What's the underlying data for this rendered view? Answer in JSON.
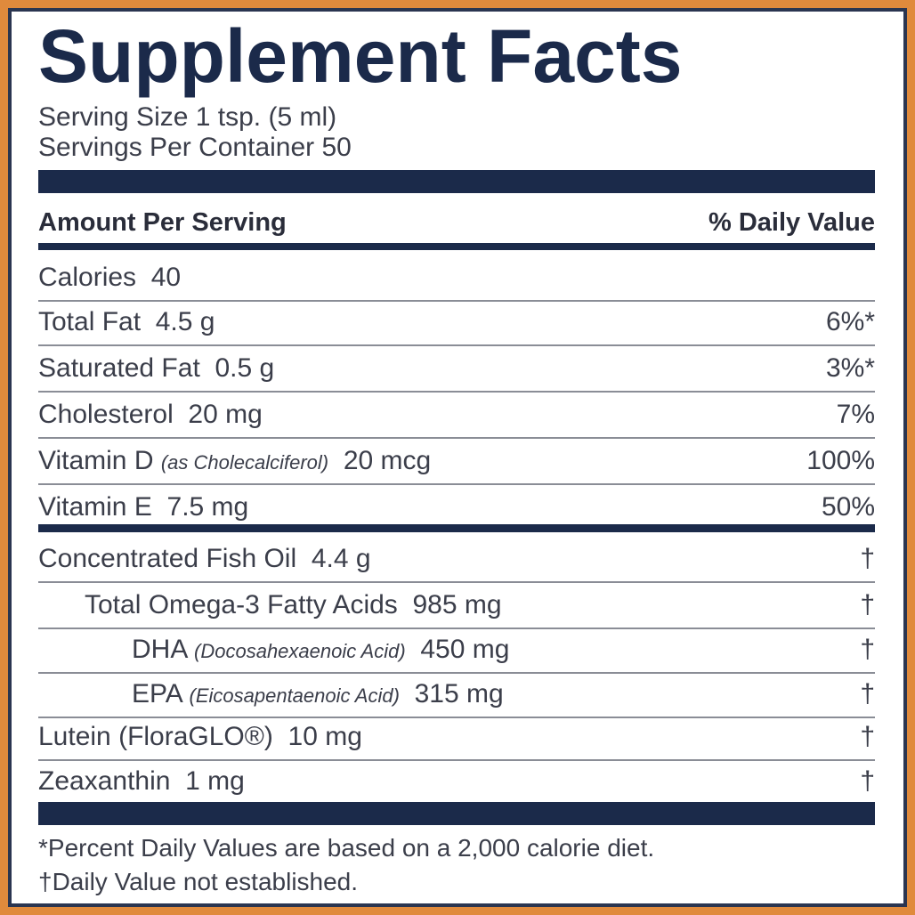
{
  "title": "Supplement Facts",
  "serving_size": "Serving Size 1 tsp. (5 ml)",
  "servings_per_container": "Servings Per Container 50",
  "header": {
    "left": "Amount Per Serving",
    "right": "% Daily Value"
  },
  "rows": [
    {
      "name": "Calories",
      "amount": "40",
      "dv": ""
    },
    {
      "name": "Total Fat",
      "amount": "4.5 g",
      "dv": "6%*"
    },
    {
      "name": "Saturated Fat",
      "amount": "0.5 g",
      "dv": "3%*"
    },
    {
      "name": "Cholesterol",
      "amount": "20 mg",
      "dv": "7%"
    },
    {
      "name": "Vitamin D",
      "note": "(as Cholecalciferol)",
      "amount": "20 mcg",
      "dv": "100%"
    },
    {
      "name": "Vitamin E",
      "amount": "7.5 mg",
      "dv": "50%"
    },
    {
      "name": "Concentrated Fish Oil",
      "amount": "4.4 g",
      "dv": "†"
    },
    {
      "name": "Total Omega-3 Fatty Acids",
      "amount": "985 mg",
      "dv": "†"
    },
    {
      "name": "DHA",
      "note": "(Docosahexaenoic Acid)",
      "amount": "450 mg",
      "dv": "†"
    },
    {
      "name": "EPA",
      "note": "(Eicosapentaenoic Acid)",
      "amount": "315 mg",
      "dv": "†"
    },
    {
      "name": "Lutein (FloraGLO®)",
      "amount": "10 mg",
      "dv": "†"
    },
    {
      "name": "Zeaxanthin",
      "amount": "1 mg",
      "dv": "†"
    }
  ],
  "footnotes": [
    "*Percent Daily Values are based on a 2,000 calorie diet.",
    "†Daily Value not established."
  ],
  "colors": {
    "border": "#e08a3c",
    "navy": "#1b2a4a",
    "text": "#3b3e4a"
  }
}
